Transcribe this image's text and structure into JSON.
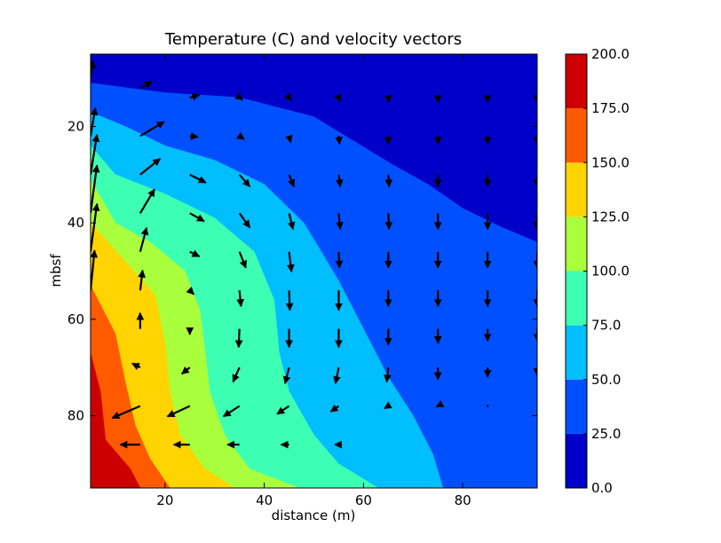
{
  "chart_data": {
    "type": "contour",
    "title": "Temperature (C) and velocity vectors",
    "xlabel": "distance (m)",
    "ylabel": "mbsf",
    "xlim": [
      5,
      95
    ],
    "ylim": [
      95,
      5
    ],
    "x_ticks": [
      "20",
      "40",
      "60",
      "80"
    ],
    "x_tick_values": [
      20,
      40,
      60,
      80
    ],
    "y_ticks": [
      "20",
      "40",
      "60",
      "80"
    ],
    "y_tick_values": [
      20,
      40,
      60,
      80
    ],
    "colorbar": {
      "ticks": [
        "0.0",
        "25.0",
        "50.0",
        "75.0",
        "100.0",
        "125.0",
        "150.0",
        "175.0",
        "200.0"
      ],
      "tick_values": [
        0,
        25,
        50,
        75,
        100,
        125,
        150,
        175,
        200
      ]
    },
    "levels": [
      0,
      25,
      50,
      75,
      100,
      125,
      150,
      175,
      200
    ],
    "level_colors": [
      "#0000c8",
      "#0050ff",
      "#00beff",
      "#3cffb4",
      "#aaff3c",
      "#ffd400",
      "#ff5a00",
      "#cc0000"
    ],
    "isotherms": [
      {
        "level": 25,
        "points": [
          [
            5,
            11
          ],
          [
            20,
            13
          ],
          [
            35,
            14
          ],
          [
            50,
            18
          ],
          [
            58,
            23
          ],
          [
            66,
            28
          ],
          [
            73,
            32
          ],
          [
            80,
            37
          ],
          [
            88,
            41
          ],
          [
            95,
            44
          ]
        ]
      },
      {
        "level": 50,
        "points": [
          [
            5,
            17
          ],
          [
            12,
            20
          ],
          [
            20,
            24
          ],
          [
            30,
            27
          ],
          [
            40,
            32
          ],
          [
            48,
            40
          ],
          [
            55,
            52
          ],
          [
            60,
            62
          ],
          [
            65,
            72
          ],
          [
            70,
            80
          ],
          [
            74,
            88
          ],
          [
            76,
            95
          ]
        ]
      },
      {
        "level": 75,
        "points": [
          [
            5,
            24
          ],
          [
            10,
            30
          ],
          [
            20,
            34
          ],
          [
            30,
            39
          ],
          [
            38,
            46
          ],
          [
            42,
            56
          ],
          [
            43,
            67
          ],
          [
            45,
            75
          ],
          [
            50,
            84
          ],
          [
            55,
            90
          ],
          [
            63,
            95
          ]
        ]
      },
      {
        "level": 100,
        "points": [
          [
            5,
            31
          ],
          [
            10,
            40
          ],
          [
            17,
            44
          ],
          [
            24,
            50
          ],
          [
            27,
            58
          ],
          [
            28,
            66
          ],
          [
            29,
            75
          ],
          [
            32,
            84
          ],
          [
            37,
            91
          ],
          [
            47,
            95
          ]
        ]
      },
      {
        "level": 125,
        "points": [
          [
            5,
            40
          ],
          [
            12,
            48
          ],
          [
            18,
            55
          ],
          [
            20,
            65
          ],
          [
            21,
            75
          ],
          [
            23,
            84
          ],
          [
            28,
            91
          ],
          [
            34,
            95
          ]
        ]
      },
      {
        "level": 150,
        "points": [
          [
            5,
            53
          ],
          [
            10,
            63
          ],
          [
            12,
            73
          ],
          [
            14,
            82
          ],
          [
            17,
            89
          ],
          [
            21,
            95
          ]
        ]
      },
      {
        "level": 175,
        "points": [
          [
            5,
            67
          ],
          [
            7,
            75
          ],
          [
            8,
            85
          ],
          [
            13,
            91
          ],
          [
            15,
            95
          ]
        ]
      }
    ],
    "vectors": [
      {
        "x": 5,
        "y": 10,
        "u": 0.3,
        "v": 2.2
      },
      {
        "x": 15,
        "y": 12,
        "u": 1.5,
        "v": 0.8
      },
      {
        "x": 25,
        "y": 14,
        "u": 1.2,
        "v": 0.3
      },
      {
        "x": 35,
        "y": 14,
        "u": 0.4,
        "v": -0.3
      },
      {
        "x": 45,
        "y": 14,
        "u": 0.3,
        "v": -0.4
      },
      {
        "x": 55,
        "y": 14,
        "u": 0.2,
        "v": -0.5
      },
      {
        "x": 65,
        "y": 14,
        "u": 0.1,
        "v": -0.6
      },
      {
        "x": 75,
        "y": 14,
        "u": 0,
        "v": -0.6
      },
      {
        "x": 85,
        "y": 14,
        "u": 0,
        "v": -0.6
      },
      {
        "x": 95,
        "y": 14,
        "u": 0,
        "v": -0.6
      },
      {
        "x": 5,
        "y": 22,
        "u": 0.6,
        "v": 3.5
      },
      {
        "x": 15,
        "y": 22,
        "u": 3.0,
        "v": 1.8
      },
      {
        "x": 25,
        "y": 22,
        "u": 1.0,
        "v": -0.1
      },
      {
        "x": 35,
        "y": 22,
        "u": 0.6,
        "v": -0.4
      },
      {
        "x": 45,
        "y": 22,
        "u": 0.2,
        "v": -0.8
      },
      {
        "x": 55,
        "y": 22,
        "u": 0.1,
        "v": -1.0
      },
      {
        "x": 65,
        "y": 22,
        "u": 0,
        "v": -1.0
      },
      {
        "x": 75,
        "y": 22,
        "u": 0,
        "v": -1.0
      },
      {
        "x": 85,
        "y": 22,
        "u": 0,
        "v": -1.0
      },
      {
        "x": 95,
        "y": 22,
        "u": 0,
        "v": -1.0
      },
      {
        "x": 5,
        "y": 30,
        "u": 0.8,
        "v": 5.0
      },
      {
        "x": 15,
        "y": 30,
        "u": 2.5,
        "v": 2.0
      },
      {
        "x": 25,
        "y": 30,
        "u": 2.0,
        "v": -1.0
      },
      {
        "x": 35,
        "y": 30,
        "u": 1.3,
        "v": -1.5
      },
      {
        "x": 45,
        "y": 30,
        "u": 0.6,
        "v": -1.5
      },
      {
        "x": 55,
        "y": 30,
        "u": 0.2,
        "v": -1.5
      },
      {
        "x": 65,
        "y": 30,
        "u": 0.1,
        "v": -1.5
      },
      {
        "x": 75,
        "y": 30,
        "u": 0,
        "v": -1.5
      },
      {
        "x": 85,
        "y": 30,
        "u": 0,
        "v": -1.5
      },
      {
        "x": 95,
        "y": 30,
        "u": 0,
        "v": -1.5
      },
      {
        "x": 5,
        "y": 38,
        "u": 0.8,
        "v": 6.0
      },
      {
        "x": 15,
        "y": 38,
        "u": 1.8,
        "v": 3.0
      },
      {
        "x": 25,
        "y": 38,
        "u": 1.8,
        "v": -1.0
      },
      {
        "x": 35,
        "y": 38,
        "u": 1.3,
        "v": -1.8
      },
      {
        "x": 45,
        "y": 38,
        "u": 0.5,
        "v": -2.0
      },
      {
        "x": 55,
        "y": 38,
        "u": 0.2,
        "v": -2.0
      },
      {
        "x": 65,
        "y": 38,
        "u": 0.1,
        "v": -2.0
      },
      {
        "x": 75,
        "y": 38,
        "u": 0,
        "v": -2.0
      },
      {
        "x": 85,
        "y": 38,
        "u": 0,
        "v": -2.0
      },
      {
        "x": 95,
        "y": 38,
        "u": 0,
        "v": -2.0
      },
      {
        "x": 5,
        "y": 46,
        "u": 0.8,
        "v": 6.0
      },
      {
        "x": 15,
        "y": 46,
        "u": 0.8,
        "v": 3.0
      },
      {
        "x": 25,
        "y": 46,
        "u": 1.2,
        "v": -0.6
      },
      {
        "x": 35,
        "y": 46,
        "u": 0.8,
        "v": -2.0
      },
      {
        "x": 45,
        "y": 46,
        "u": 0.3,
        "v": -2.5
      },
      {
        "x": 55,
        "y": 46,
        "u": 0.1,
        "v": -2.0
      },
      {
        "x": 65,
        "y": 46,
        "u": 0,
        "v": -2.0
      },
      {
        "x": 75,
        "y": 46,
        "u": 0,
        "v": -2.0
      },
      {
        "x": 85,
        "y": 46,
        "u": 0,
        "v": -2.0
      },
      {
        "x": 95,
        "y": 46,
        "u": 0,
        "v": -2.0
      },
      {
        "x": 5,
        "y": 54,
        "u": 0.5,
        "v": 5.0
      },
      {
        "x": 15,
        "y": 54,
        "u": 0.3,
        "v": 2.5
      },
      {
        "x": 25,
        "y": 54,
        "u": 0.5,
        "v": -0.5
      },
      {
        "x": 35,
        "y": 54,
        "u": 0.2,
        "v": -2.0
      },
      {
        "x": 45,
        "y": 54,
        "u": 0.1,
        "v": -2.5
      },
      {
        "x": 55,
        "y": 54,
        "u": 0,
        "v": -2.5
      },
      {
        "x": 65,
        "y": 54,
        "u": 0,
        "v": -2.0
      },
      {
        "x": 75,
        "y": 54,
        "u": 0,
        "v": -2.0
      },
      {
        "x": 85,
        "y": 54,
        "u": 0,
        "v": -2.0
      },
      {
        "x": 95,
        "y": 54,
        "u": 0,
        "v": -2.0
      },
      {
        "x": 15,
        "y": 62,
        "u": 0,
        "v": 2.0
      },
      {
        "x": 25,
        "y": 62,
        "u": 0,
        "v": -0.7
      },
      {
        "x": 35,
        "y": 62,
        "u": -0.1,
        "v": -2.3
      },
      {
        "x": 45,
        "y": 62,
        "u": 0,
        "v": -2.3
      },
      {
        "x": 55,
        "y": 62,
        "u": 0,
        "v": -2.3
      },
      {
        "x": 65,
        "y": 62,
        "u": 0,
        "v": -2.0
      },
      {
        "x": 75,
        "y": 62,
        "u": 0,
        "v": -1.8
      },
      {
        "x": 85,
        "y": 62,
        "u": 0,
        "v": -1.5
      },
      {
        "x": 95,
        "y": 62,
        "u": 0,
        "v": -1.5
      },
      {
        "x": 15,
        "y": 70,
        "u": -1.0,
        "v": 0.5
      },
      {
        "x": 25,
        "y": 70,
        "u": -1.0,
        "v": -0.8
      },
      {
        "x": 35,
        "y": 70,
        "u": -0.8,
        "v": -1.8
      },
      {
        "x": 45,
        "y": 70,
        "u": -0.5,
        "v": -2.0
      },
      {
        "x": 55,
        "y": 70,
        "u": -0.4,
        "v": -2.0
      },
      {
        "x": 65,
        "y": 70,
        "u": -0.2,
        "v": -1.8
      },
      {
        "x": 75,
        "y": 70,
        "u": 0,
        "v": -1.5
      },
      {
        "x": 85,
        "y": 70,
        "u": 0,
        "v": -1.2
      },
      {
        "x": 95,
        "y": 70,
        "u": 0,
        "v": -1.0
      },
      {
        "x": 5,
        "y": 78,
        "u": -4.0,
        "v": -1.5
      },
      {
        "x": 15,
        "y": 78,
        "u": -3.5,
        "v": -1.5
      },
      {
        "x": 25,
        "y": 78,
        "u": -2.8,
        "v": -1.3
      },
      {
        "x": 35,
        "y": 78,
        "u": -2.0,
        "v": -1.3
      },
      {
        "x": 45,
        "y": 78,
        "u": -1.5,
        "v": -1.0
      },
      {
        "x": 55,
        "y": 78,
        "u": -1.0,
        "v": -0.7
      },
      {
        "x": 65,
        "y": 78,
        "u": -0.5,
        "v": -0.3
      },
      {
        "x": 75,
        "y": 78,
        "u": -0.2,
        "v": -0.1
      },
      {
        "x": 85,
        "y": 78,
        "u": 0,
        "v": 0
      },
      {
        "x": 5,
        "y": 86,
        "u": -3.0,
        "v": 0
      },
      {
        "x": 15,
        "y": 86,
        "u": -2.5,
        "v": 0
      },
      {
        "x": 25,
        "y": 86,
        "u": -2.0,
        "v": 0
      },
      {
        "x": 35,
        "y": 86,
        "u": -1.5,
        "v": 0
      },
      {
        "x": 45,
        "y": 86,
        "u": -1.0,
        "v": 0
      },
      {
        "x": 55,
        "y": 86,
        "u": -0.5,
        "v": 0
      }
    ]
  }
}
